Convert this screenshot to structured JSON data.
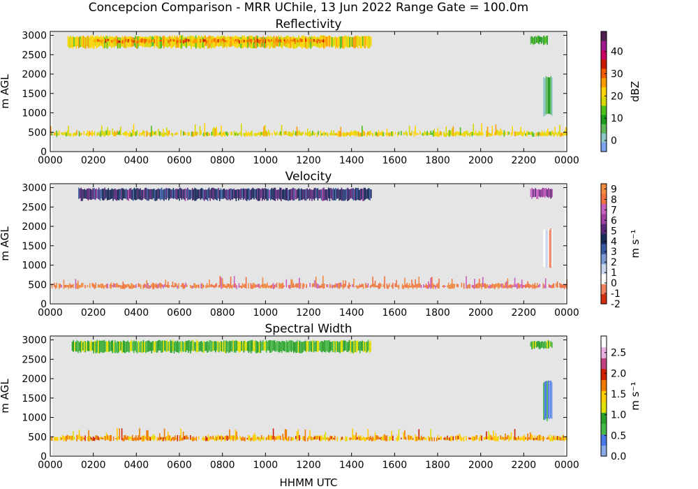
{
  "figure": {
    "title": "Concepcion Comparison - MRR UChile, 13 Jun 2022 Range Gate = 100.0m",
    "xlabel": "HHMM UTC"
  },
  "chart_data": [
    {
      "type": "heatmap",
      "title": "Reflectivity",
      "xlabel": "",
      "ylabel": "m AGL",
      "x_ticks": [
        "0000",
        "0200",
        "0400",
        "0600",
        "0800",
        "1000",
        "1200",
        "1400",
        "1600",
        "1800",
        "2000",
        "2200",
        "0000"
      ],
      "x_hours": [
        0,
        2,
        4,
        6,
        8,
        10,
        12,
        14,
        16,
        18,
        20,
        22,
        24
      ],
      "y_ticks": [
        "0",
        "500",
        "1000",
        "1500",
        "2000",
        "2500",
        "3000"
      ],
      "y_values": [
        0,
        500,
        1000,
        1500,
        2000,
        2500,
        3000
      ],
      "xlim": [
        0,
        24
      ],
      "ylim": [
        0,
        3100
      ],
      "background": "#e5e5e5",
      "colorbar": {
        "label": "dBZ",
        "ticks": [
          "0",
          "10",
          "20",
          "30",
          "40"
        ],
        "tick_values": [
          0,
          10,
          20,
          30,
          40
        ],
        "range": [
          -5,
          49
        ],
        "colors": [
          "#7aa4f0",
          "#8ec6c8",
          "#5fb85a",
          "#1e9a1e",
          "#4fc01a",
          "#d8d800",
          "#ffd400",
          "#ff9a00",
          "#f05a00",
          "#c81a00",
          "#c80064",
          "#a01a8c",
          "#502050"
        ]
      },
      "regions": [
        {
          "label": "upper layer",
          "t_start": 0.8,
          "t_end": 14.9,
          "h_low": 2650,
          "h_high": 3000,
          "value": 20
        },
        {
          "label": "upper layer core",
          "t_start": 2.0,
          "t_end": 12.8,
          "h_low": 2780,
          "h_high": 2920,
          "value": 28
        },
        {
          "label": "late upper cells",
          "t_start": 22.3,
          "t_end": 23.1,
          "h_low": 2750,
          "h_high": 3000,
          "value": 10
        },
        {
          "label": "shaft",
          "t_start": 22.9,
          "t_end": 23.3,
          "h_low": 900,
          "h_high": 1950,
          "value": 6
        },
        {
          "label": "low band",
          "t_start": 0.0,
          "t_end": 24.0,
          "h_low": 330,
          "h_high": 750,
          "value": 20
        }
      ]
    },
    {
      "type": "heatmap",
      "title": "Velocity",
      "xlabel": "",
      "ylabel": "m AGL",
      "x_ticks": [
        "0000",
        "0200",
        "0400",
        "0600",
        "0800",
        "1000",
        "1200",
        "1400",
        "1600",
        "1800",
        "2000",
        "2200",
        "0000"
      ],
      "x_hours": [
        0,
        2,
        4,
        6,
        8,
        10,
        12,
        14,
        16,
        18,
        20,
        22,
        24
      ],
      "y_ticks": [
        "0",
        "500",
        "1000",
        "1500",
        "2000",
        "2500",
        "3000"
      ],
      "y_values": [
        0,
        500,
        1000,
        1500,
        2000,
        2500,
        3000
      ],
      "xlim": [
        0,
        24
      ],
      "ylim": [
        0,
        3100
      ],
      "background": "#e5e5e5",
      "colorbar": {
        "label": "m s⁻¹",
        "ticks": [
          "-2",
          "-1",
          "0",
          "1",
          "2",
          "3",
          "4",
          "5",
          "6",
          "7",
          "8",
          "9"
        ],
        "tick_values": [
          -2,
          -1,
          0,
          1,
          2,
          3,
          4,
          5,
          6,
          7,
          8,
          9
        ],
        "range": [
          -2,
          9.5
        ],
        "colors": [
          "#d03010",
          "#f08060",
          "#ffffff",
          "#c8d4ec",
          "#7a98d0",
          "#3a5aa0",
          "#1a2a5a",
          "#5a2a7a",
          "#a040a0",
          "#c860c0",
          "#f07040",
          "#f08a40"
        ]
      },
      "regions": [
        {
          "label": "upper layer",
          "t_start": 1.3,
          "t_end": 14.9,
          "h_low": 2650,
          "h_high": 3000,
          "value": 4.5
        },
        {
          "label": "late upper cells",
          "t_start": 22.3,
          "t_end": 23.3,
          "h_low": 2700,
          "h_high": 3000,
          "value": 6
        },
        {
          "label": "shaft",
          "t_start": 22.9,
          "t_end": 23.3,
          "h_low": 900,
          "h_high": 1950,
          "value": 0.7
        },
        {
          "label": "low band",
          "t_start": 0.0,
          "t_end": 24.0,
          "h_low": 330,
          "h_high": 750,
          "value": 8.5
        }
      ]
    },
    {
      "type": "heatmap",
      "title": "Spectral Width",
      "xlabel": "HHMM UTC",
      "ylabel": "m AGL",
      "x_ticks": [
        "0000",
        "0200",
        "0400",
        "0600",
        "0800",
        "1000",
        "1200",
        "1400",
        "1600",
        "1800",
        "2000",
        "2200",
        "0000"
      ],
      "x_hours": [
        0,
        2,
        4,
        6,
        8,
        10,
        12,
        14,
        16,
        18,
        20,
        22,
        24
      ],
      "y_ticks": [
        "0",
        "500",
        "1000",
        "1500",
        "2000",
        "2500",
        "3000"
      ],
      "y_values": [
        0,
        500,
        1000,
        1500,
        2000,
        2500,
        3000
      ],
      "xlim": [
        0,
        24
      ],
      "ylim": [
        0,
        3100
      ],
      "background": "#e5e5e5",
      "colorbar": {
        "label": "m s⁻¹",
        "ticks": [
          "0.0",
          "0.5",
          "1.0",
          "1.5",
          "2.0",
          "2.5"
        ],
        "tick_values": [
          0,
          0.5,
          1,
          1.5,
          2,
          2.5
        ],
        "range": [
          0,
          2.9
        ],
        "colors": [
          "#8aa8e8",
          "#4a78e8",
          "#48b848",
          "#2aa02a",
          "#e0e000",
          "#ffcc00",
          "#f07a00",
          "#d02000",
          "#c04080",
          "#e8b0e0",
          "#ffffff"
        ]
      },
      "regions": [
        {
          "label": "upper layer",
          "t_start": 1.0,
          "t_end": 14.9,
          "h_low": 2650,
          "h_high": 3000,
          "value": 0.9
        },
        {
          "label": "late upper cells",
          "t_start": 22.3,
          "t_end": 23.3,
          "h_low": 2750,
          "h_high": 3000,
          "value": 0.8
        },
        {
          "label": "shaft",
          "t_start": 22.9,
          "t_end": 23.3,
          "h_low": 900,
          "h_high": 1950,
          "value": 0.4
        },
        {
          "label": "low band",
          "t_start": 0.0,
          "t_end": 24.0,
          "h_low": 330,
          "h_high": 750,
          "value": 1.6
        }
      ]
    }
  ]
}
